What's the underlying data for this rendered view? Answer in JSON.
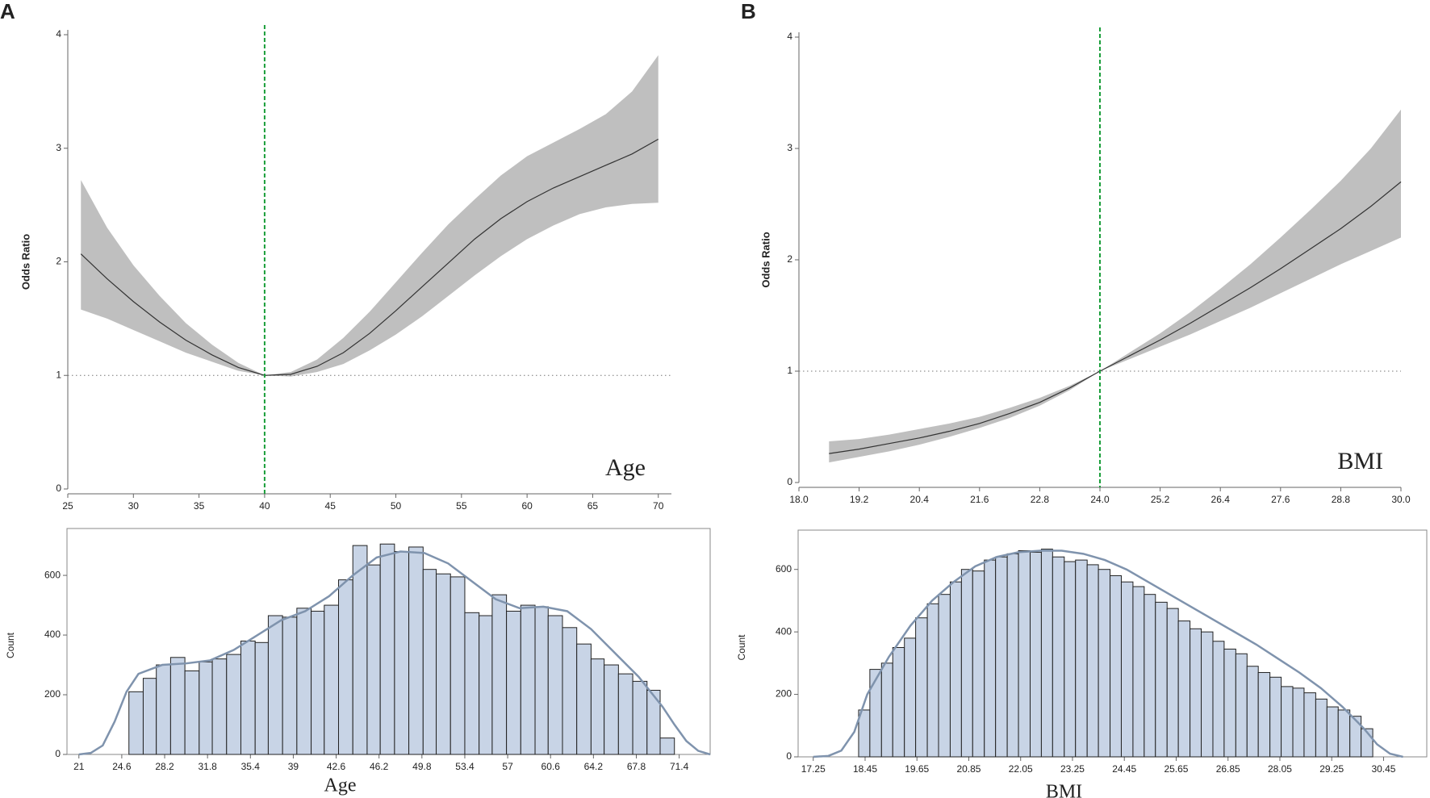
{
  "chart_data": [
    {
      "type": "spline",
      "label": "A",
      "ylabel": "Odds Ratio",
      "annotation": "Age",
      "x": [
        26,
        28,
        30,
        32,
        34,
        36,
        38,
        40,
        42,
        44,
        46,
        48,
        50,
        52,
        54,
        56,
        58,
        60,
        62,
        64,
        66,
        68,
        70
      ],
      "values": [
        2.07,
        1.85,
        1.65,
        1.47,
        1.31,
        1.18,
        1.07,
        1.0,
        1.01,
        1.08,
        1.2,
        1.37,
        1.57,
        1.78,
        1.99,
        2.2,
        2.38,
        2.53,
        2.65,
        2.75,
        2.85,
        2.95,
        3.08
      ],
      "lower": [
        1.58,
        1.5,
        1.4,
        1.3,
        1.2,
        1.12,
        1.04,
        1.0,
        0.99,
        1.03,
        1.1,
        1.22,
        1.36,
        1.52,
        1.7,
        1.88,
        2.05,
        2.2,
        2.32,
        2.42,
        2.48,
        2.51,
        2.52
      ],
      "upper": [
        2.72,
        2.3,
        1.97,
        1.7,
        1.46,
        1.27,
        1.11,
        1.0,
        1.03,
        1.14,
        1.33,
        1.56,
        1.82,
        2.08,
        2.33,
        2.55,
        2.76,
        2.93,
        3.05,
        3.17,
        3.3,
        3.5,
        3.82
      ],
      "xlim": [
        25,
        71
      ],
      "xticks": [
        25,
        30,
        35,
        40,
        45,
        50,
        55,
        60,
        65,
        70
      ],
      "ylim": [
        0,
        4
      ],
      "yticks": [
        0,
        1,
        2,
        3,
        4
      ],
      "vline": 40,
      "hline": 1,
      "line_color": "#333333",
      "band_color": "#bfbfbf",
      "vline_color": "#1a9e3a"
    },
    {
      "type": "histogram",
      "ylabel": "Count",
      "xlabel": "Age",
      "bins": [
        25.2,
        26.4,
        27.5,
        28.7,
        29.9,
        31.1,
        32.2,
        33.4,
        34.6,
        35.8,
        36.9,
        38.1,
        39.3,
        40.5,
        41.6,
        42.8,
        44.0,
        45.2,
        46.3,
        47.5,
        48.7,
        49.9,
        51.0,
        52.2,
        53.4,
        54.6,
        55.7,
        56.9,
        58.1,
        59.3,
        60.4,
        61.6,
        62.8,
        64.0,
        65.1,
        66.3,
        67.5,
        68.7,
        69.8,
        71.0
      ],
      "counts": [
        210,
        255,
        300,
        325,
        280,
        310,
        320,
        335,
        380,
        375,
        465,
        460,
        490,
        480,
        500,
        585,
        700,
        635,
        705,
        680,
        695,
        620,
        605,
        595,
        475,
        465,
        535,
        480,
        500,
        495,
        465,
        425,
        370,
        320,
        300,
        270,
        245,
        215,
        55
      ],
      "kde_x": [
        21,
        22,
        23,
        24,
        25,
        26,
        28,
        30,
        32,
        34,
        36,
        38,
        40,
        42,
        44,
        46,
        48,
        50,
        52,
        54,
        56,
        58,
        60,
        62,
        64,
        66,
        68,
        70,
        71,
        72,
        73,
        74
      ],
      "kde_values": [
        0,
        5,
        30,
        110,
        210,
        270,
        300,
        305,
        315,
        350,
        400,
        450,
        480,
        530,
        600,
        660,
        680,
        675,
        640,
        580,
        520,
        490,
        495,
        480,
        420,
        340,
        260,
        160,
        100,
        45,
        12,
        0
      ],
      "xlim": [
        20,
        74
      ],
      "xticks": [
        21,
        24.6,
        28.2,
        31.8,
        35.4,
        39,
        42.6,
        46.2,
        49.8,
        53.4,
        57,
        60.6,
        64.2,
        67.8,
        71.4
      ],
      "ylim": [
        0,
        730
      ],
      "yticks": [
        0,
        200,
        400,
        600
      ],
      "color": "#c8d4e6",
      "kde_color": "#7f93ad"
    },
    {
      "type": "spline",
      "label": "B",
      "ylabel": "Odds Ratio",
      "annotation": "BMI",
      "x": [
        18.6,
        19.2,
        19.8,
        20.4,
        21,
        21.6,
        22.2,
        22.8,
        23.4,
        24,
        24.6,
        25.2,
        25.8,
        26.4,
        27,
        27.6,
        28.2,
        28.8,
        29.4,
        30
      ],
      "values": [
        0.26,
        0.3,
        0.35,
        0.4,
        0.46,
        0.53,
        0.62,
        0.72,
        0.85,
        1.0,
        1.14,
        1.28,
        1.43,
        1.59,
        1.75,
        1.92,
        2.1,
        2.28,
        2.48,
        2.7
      ],
      "lower": [
        0.18,
        0.23,
        0.28,
        0.34,
        0.41,
        0.49,
        0.58,
        0.69,
        0.83,
        1.0,
        1.11,
        1.22,
        1.33,
        1.45,
        1.57,
        1.7,
        1.83,
        1.96,
        2.08,
        2.2
      ],
      "upper": [
        0.37,
        0.39,
        0.43,
        0.48,
        0.53,
        0.59,
        0.67,
        0.76,
        0.87,
        1.0,
        1.17,
        1.34,
        1.53,
        1.74,
        1.96,
        2.2,
        2.45,
        2.71,
        3.0,
        3.35
      ],
      "xlim": [
        18,
        30
      ],
      "xticks": [
        {
          "value": 18,
          "label": "18.0"
        },
        19.2,
        20.4,
        21.6,
        22.8,
        {
          "value": 24,
          "label": "24.0"
        },
        25.2,
        26.4,
        27.6,
        28.8,
        {
          "value": 30,
          "label": "30.0"
        }
      ],
      "ylim": [
        0,
        4
      ],
      "yticks": [
        0,
        1,
        2,
        3,
        4
      ],
      "vline": 24,
      "hline": 1,
      "line_color": "#333333",
      "band_color": "#bfbfbf",
      "vline_color": "#1a9e3a"
    },
    {
      "type": "histogram",
      "ylabel": "Count",
      "xlabel": "BMI",
      "bins": [
        18.3,
        18.56,
        18.83,
        19.09,
        19.36,
        19.62,
        19.89,
        20.15,
        20.42,
        20.68,
        20.94,
        21.21,
        21.47,
        21.74,
        22.0,
        22.27,
        22.53,
        22.79,
        23.06,
        23.32,
        23.59,
        23.85,
        24.12,
        24.38,
        24.65,
        24.91,
        25.17,
        25.44,
        25.7,
        25.97,
        26.23,
        26.5,
        26.76,
        27.03,
        27.29,
        27.55,
        27.82,
        28.08,
        28.35,
        28.61,
        28.88,
        29.14,
        29.4,
        29.67,
        29.93,
        30.2
      ],
      "counts": [
        150,
        280,
        300,
        350,
        380,
        445,
        490,
        520,
        560,
        600,
        595,
        630,
        640,
        650,
        660,
        655,
        665,
        640,
        625,
        630,
        615,
        600,
        580,
        560,
        545,
        520,
        495,
        475,
        435,
        410,
        400,
        370,
        345,
        330,
        290,
        270,
        255,
        225,
        220,
        205,
        185,
        160,
        150,
        130,
        90
      ],
      "kde_x": [
        17.25,
        17.6,
        17.9,
        18.2,
        18.5,
        19,
        19.5,
        20,
        20.5,
        21,
        21.5,
        22,
        22.5,
        23,
        23.5,
        24,
        24.5,
        25,
        25.5,
        26,
        26.5,
        27,
        27.5,
        28,
        28.5,
        29,
        29.5,
        30,
        30.3,
        30.6,
        30.9
      ],
      "kde_values": [
        0,
        3,
        20,
        80,
        200,
        320,
        420,
        500,
        560,
        610,
        640,
        655,
        660,
        660,
        650,
        630,
        600,
        560,
        520,
        480,
        440,
        400,
        360,
        315,
        270,
        220,
        160,
        90,
        40,
        10,
        0
      ],
      "xlim": [
        16.9,
        31.45
      ],
      "xticks": [
        17.25,
        18.45,
        19.65,
        20.85,
        22.05,
        23.25,
        24.45,
        25.65,
        26.85,
        28.05,
        29.25,
        30.45
      ],
      "ylim": [
        0,
        700
      ],
      "yticks": [
        0,
        200,
        400,
        600
      ],
      "color": "#c8d4e6",
      "kde_color": "#7f93ad"
    }
  ]
}
